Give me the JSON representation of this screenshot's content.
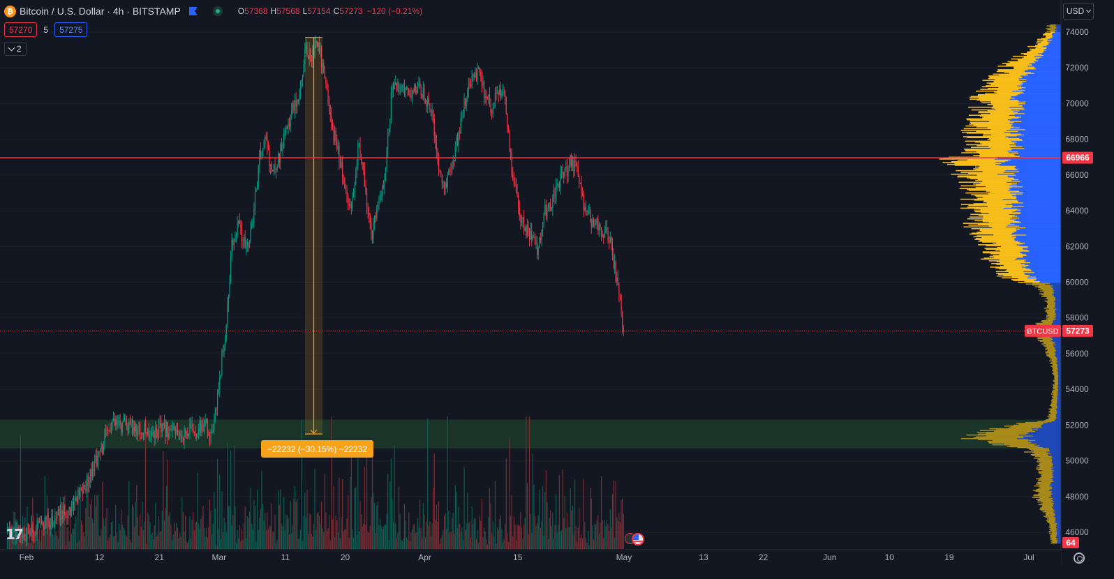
{
  "symbol": {
    "logo_glyph": "₿",
    "title": "Bitcoin / U.S. Dollar · 4h · BITSTAMP",
    "ohlc": {
      "o_label": "O",
      "o": "57368",
      "h_label": "H",
      "h": "57568",
      "l_label": "L",
      "l": "57154",
      "c_label": "C",
      "c": "57273",
      "change": "−120 (−0.21%)"
    }
  },
  "trade": {
    "sell": "57270",
    "spread": "5",
    "buy": "57275"
  },
  "indicators_toggle": {
    "count": "2"
  },
  "currency": {
    "label": "USD"
  },
  "price_axis": {
    "min": 45200,
    "max": 74700,
    "ticks": [
      "74000",
      "72000",
      "70000",
      "68000",
      "66000",
      "64000",
      "62000",
      "60000",
      "58000",
      "56000",
      "54000",
      "52000",
      "50000",
      "48000",
      "46000"
    ],
    "horizontal_line": {
      "price": 66966,
      "label": "66966",
      "color": "#f23645"
    },
    "last_price": {
      "price": 57273,
      "symbol_label": "BTCUSD",
      "label": "57273",
      "color": "#f23645"
    },
    "volume_badge": {
      "label": "64"
    }
  },
  "time_axis": {
    "labels": [
      {
        "text": "Feb",
        "day": 1
      },
      {
        "text": "12",
        "day": 12
      },
      {
        "text": "21",
        "day": 21
      },
      {
        "text": "Mar",
        "day": 30
      },
      {
        "text": "11",
        "day": 40
      },
      {
        "text": "20",
        "day": 49
      },
      {
        "text": "Apr",
        "day": 61
      },
      {
        "text": "15",
        "day": 75
      },
      {
        "text": "May",
        "day": 91
      },
      {
        "text": "13",
        "day": 103
      },
      {
        "text": "22",
        "day": 112
      },
      {
        "text": "Jun",
        "day": 122
      },
      {
        "text": "10",
        "day": 131
      },
      {
        "text": "19",
        "day": 140
      },
      {
        "text": "Jul",
        "day": 152
      }
    ]
  },
  "price_path": [
    [
      -2,
      46000
    ],
    [
      1,
      45900
    ],
    [
      3,
      46300
    ],
    [
      6,
      46900
    ],
    [
      8,
      47500
    ],
    [
      10,
      48700
    ],
    [
      11,
      49800
    ],
    [
      12,
      50300
    ],
    [
      13,
      51400
    ],
    [
      14,
      52000
    ],
    [
      16,
      51900
    ],
    [
      18,
      51700
    ],
    [
      20,
      51600
    ],
    [
      22,
      51800
    ],
    [
      24,
      51400
    ],
    [
      26,
      51700
    ],
    [
      28,
      51900
    ],
    [
      29,
      51100
    ],
    [
      30,
      54500
    ],
    [
      31,
      57300
    ],
    [
      32,
      62300
    ],
    [
      33,
      63200
    ],
    [
      34,
      61800
    ],
    [
      35,
      63000
    ],
    [
      36,
      66900
    ],
    [
      37,
      68000
    ],
    [
      38,
      66000
    ],
    [
      39,
      67000
    ],
    [
      40,
      68200
    ],
    [
      41,
      69800
    ],
    [
      42,
      70500
    ],
    [
      43,
      72900
    ],
    [
      44,
      72800
    ],
    [
      45,
      73500
    ],
    [
      46,
      71000
    ],
    [
      47,
      68600
    ],
    [
      48,
      67400
    ],
    [
      49,
      65000
    ],
    [
      50,
      64500
    ],
    [
      51,
      67700
    ],
    [
      52,
      65300
    ],
    [
      53,
      62500
    ],
    [
      54,
      64300
    ],
    [
      55,
      66200
    ],
    [
      56,
      70600
    ],
    [
      57,
      70900
    ],
    [
      58,
      70500
    ],
    [
      59,
      70700
    ],
    [
      60,
      71100
    ],
    [
      61,
      70400
    ],
    [
      62,
      69500
    ],
    [
      63,
      66700
    ],
    [
      64,
      65100
    ],
    [
      65,
      66500
    ],
    [
      66,
      68100
    ],
    [
      67,
      70000
    ],
    [
      68,
      71200
    ],
    [
      69,
      71700
    ],
    [
      70,
      70500
    ],
    [
      71,
      69800
    ],
    [
      72,
      70800
    ],
    [
      73,
      70600
    ],
    [
      74,
      66500
    ],
    [
      75,
      64500
    ],
    [
      76,
      62800
    ],
    [
      77,
      62700
    ],
    [
      78,
      61800
    ],
    [
      79,
      64000
    ],
    [
      80,
      64200
    ],
    [
      81,
      65600
    ],
    [
      82,
      66000
    ],
    [
      83,
      66800
    ],
    [
      84,
      66300
    ],
    [
      85,
      64100
    ],
    [
      86,
      63500
    ],
    [
      87,
      63300
    ],
    [
      88,
      62900
    ],
    [
      89,
      62200
    ],
    [
      90,
      59800
    ],
    [
      91,
      57300
    ]
  ],
  "measure_tool": {
    "label": "−22232 (−30.15%) −22232",
    "color": "#f7a21b"
  },
  "demand_zone": {
    "price_top": 52300,
    "price_bottom": 50700,
    "color": "#1d3a2a"
  },
  "volume_profile": {
    "colors": {
      "up": "#f7be1b",
      "down": "#2962ff",
      "value_area_up": "#f7be1b",
      "outside_up": "#a88a1a",
      "outside_down": "#1e48b8"
    },
    "value_area": {
      "high": 74000,
      "low": 60000
    },
    "shape": [
      [
        46000,
        0.04
      ],
      [
        47000,
        0.06
      ],
      [
        48000,
        0.1
      ],
      [
        49000,
        0.09
      ],
      [
        50000,
        0.08
      ],
      [
        50700,
        0.14
      ],
      [
        51000,
        0.28
      ],
      [
        51300,
        0.35
      ],
      [
        51600,
        0.3
      ],
      [
        52000,
        0.2
      ],
      [
        52300,
        0.05
      ],
      [
        53000,
        0.04
      ],
      [
        54000,
        0.03
      ],
      [
        55000,
        0.03
      ],
      [
        56000,
        0.05
      ],
      [
        57000,
        0.09
      ],
      [
        57300,
        0.13
      ],
      [
        58000,
        0.05
      ],
      [
        59000,
        0.06
      ],
      [
        59800,
        0.09
      ],
      [
        60300,
        0.22
      ],
      [
        61000,
        0.26
      ],
      [
        62000,
        0.28
      ],
      [
        63000,
        0.32
      ],
      [
        64000,
        0.34
      ],
      [
        65000,
        0.33
      ],
      [
        66000,
        0.36
      ],
      [
        66900,
        0.4
      ],
      [
        67500,
        0.32
      ],
      [
        68500,
        0.33
      ],
      [
        69500,
        0.31
      ],
      [
        70500,
        0.3
      ],
      [
        71500,
        0.25
      ],
      [
        72500,
        0.18
      ],
      [
        73300,
        0.1
      ],
      [
        74000,
        0.05
      ]
    ]
  }
}
